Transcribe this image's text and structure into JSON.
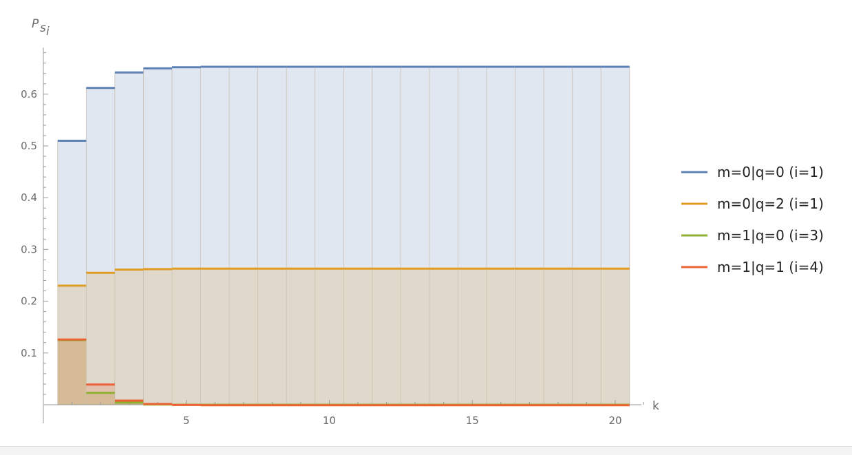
{
  "chart_data": {
    "type": "area",
    "title": "",
    "xlabel": "k",
    "ylabel_base": "P",
    "ylabel_sub": "s",
    "ylabel_subsub": "i",
    "xlim": [
      0.5,
      21
    ],
    "ylim": [
      -0.02,
      0.69
    ],
    "x_ticks": [
      5,
      10,
      15,
      20
    ],
    "y_ticks": [
      0.1,
      0.2,
      0.3,
      0.4,
      0.5,
      0.6
    ],
    "grid": false,
    "step": true,
    "legend_position": "right",
    "x": [
      1,
      2,
      3,
      4,
      5,
      6,
      7,
      8,
      9,
      10,
      11,
      12,
      13,
      14,
      15,
      16,
      17,
      18,
      19,
      20
    ],
    "series": [
      {
        "name": "m=0|q=0 (i=1)",
        "color": "#5e81b5",
        "values": [
          0.51,
          0.612,
          0.642,
          0.65,
          0.652,
          0.653,
          0.653,
          0.653,
          0.653,
          0.653,
          0.653,
          0.653,
          0.653,
          0.653,
          0.653,
          0.653,
          0.653,
          0.653,
          0.653,
          0.653
        ]
      },
      {
        "name": "m=0|q=2 (i=1)",
        "color": "#e19c24",
        "values": [
          0.23,
          0.255,
          0.261,
          0.262,
          0.263,
          0.263,
          0.263,
          0.263,
          0.263,
          0.263,
          0.263,
          0.263,
          0.263,
          0.263,
          0.263,
          0.263,
          0.263,
          0.263,
          0.263,
          0.263
        ]
      },
      {
        "name": "m=1|q=0 (i=3)",
        "color": "#8fb032",
        "values": [
          0.125,
          0.023,
          0.004,
          0.0005,
          0.0,
          0.0,
          0.0,
          0.0,
          0.0,
          0.0,
          0.0,
          0.0,
          0.0,
          0.0,
          0.0,
          0.0,
          0.0,
          0.0,
          0.0,
          0.0
        ]
      },
      {
        "name": "m=1|q=1 (i=4)",
        "color": "#eb6235",
        "values": [
          0.126,
          0.039,
          0.008,
          0.0015,
          -0.0005,
          -0.001,
          -0.001,
          -0.001,
          -0.001,
          -0.001,
          -0.001,
          -0.001,
          -0.001,
          -0.001,
          -0.001,
          -0.001,
          -0.001,
          -0.001,
          -0.001,
          -0.001
        ]
      }
    ]
  }
}
